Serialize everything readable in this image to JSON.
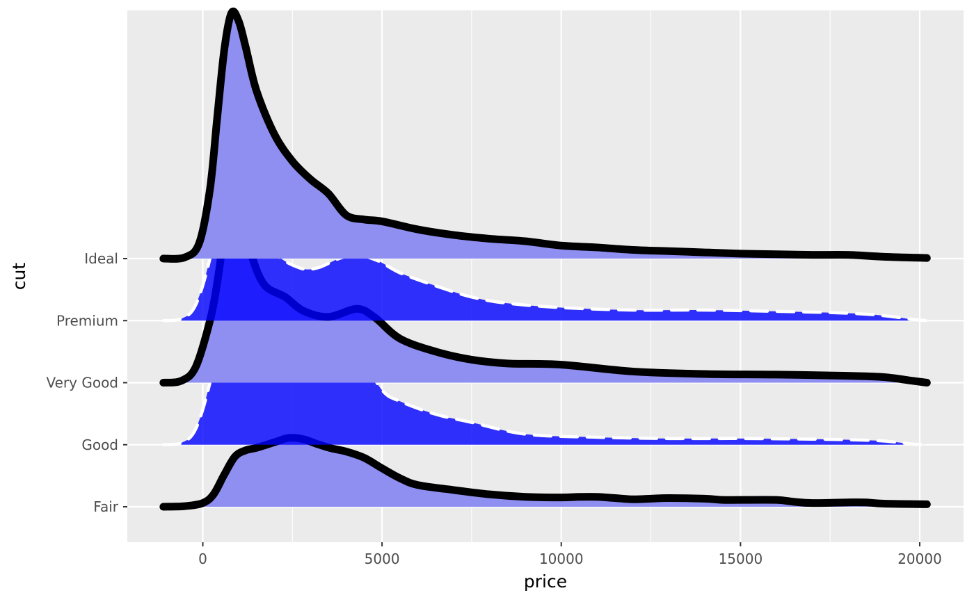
{
  "chart_data": {
    "type": "ridgeline",
    "xlabel": "price",
    "ylabel": "cut",
    "xlim": [
      -2100,
      21100
    ],
    "x_ticks": [
      0,
      5000,
      10000,
      15000,
      20000
    ],
    "x_tick_labels": [
      "0",
      "5000",
      "10000",
      "15000",
      "20000"
    ],
    "grid": true,
    "legend": "none",
    "categories": [
      "Fair",
      "Good",
      "Very Good",
      "Premium",
      "Ideal"
    ],
    "ridge_height_units": 1,
    "colors": {
      "panel_bg": "#ebebeb",
      "grid": "#ffffff",
      "fill_solid": "blue",
      "fill_light": "#8f8ff2",
      "line_solid": "#000000",
      "line_dashed": "#ffffff"
    },
    "series": [
      {
        "category": "Fair",
        "fill": "light",
        "line": "solid",
        "points": [
          [
            -1100,
            0
          ],
          [
            -500,
            0.01
          ],
          [
            0,
            0.06
          ],
          [
            300,
            0.2
          ],
          [
            600,
            0.52
          ],
          [
            900,
            0.81
          ],
          [
            1200,
            0.91
          ],
          [
            1500,
            0.95
          ],
          [
            2000,
            1.04
          ],
          [
            2400,
            1.11
          ],
          [
            2800,
            1.09
          ],
          [
            3200,
            1.01
          ],
          [
            3600,
            0.94
          ],
          [
            4000,
            0.89
          ],
          [
            4500,
            0.79
          ],
          [
            5000,
            0.62
          ],
          [
            5500,
            0.46
          ],
          [
            6000,
            0.35
          ],
          [
            7000,
            0.27
          ],
          [
            8000,
            0.2
          ],
          [
            9000,
            0.16
          ],
          [
            10000,
            0.15
          ],
          [
            10500,
            0.16
          ],
          [
            11000,
            0.16
          ],
          [
            11500,
            0.14
          ],
          [
            12000,
            0.12
          ],
          [
            12500,
            0.13
          ],
          [
            13000,
            0.14
          ],
          [
            14000,
            0.13
          ],
          [
            14500,
            0.11
          ],
          [
            15000,
            0.11
          ],
          [
            16000,
            0.11
          ],
          [
            16500,
            0.08
          ],
          [
            17000,
            0.06
          ],
          [
            18000,
            0.07
          ],
          [
            18500,
            0.07
          ],
          [
            19000,
            0.05
          ],
          [
            20200,
            0.04
          ]
        ]
      },
      {
        "category": "Good",
        "fill": "solid",
        "line": "dashed",
        "points": [
          [
            -1100,
            0
          ],
          [
            -600,
            0.03
          ],
          [
            -200,
            0.25
          ],
          [
            200,
            1.0
          ],
          [
            500,
            1.92
          ],
          [
            800,
            2.61
          ],
          [
            1000,
            2.5
          ],
          [
            1400,
            1.83
          ],
          [
            2000,
            1.38
          ],
          [
            2600,
            1.25
          ],
          [
            3200,
            1.21
          ],
          [
            3600,
            1.37
          ],
          [
            4000,
            1.53
          ],
          [
            4400,
            1.44
          ],
          [
            5000,
            0.88
          ],
          [
            5500,
            0.7
          ],
          [
            6500,
            0.49
          ],
          [
            7500,
            0.36
          ],
          [
            9000,
            0.17
          ],
          [
            11000,
            0.12
          ],
          [
            13000,
            0.1
          ],
          [
            15000,
            0.1
          ],
          [
            17000,
            0.09
          ],
          [
            18000,
            0.08
          ],
          [
            19000,
            0.06
          ],
          [
            19800,
            0.01
          ],
          [
            20200,
            0
          ]
        ]
      },
      {
        "category": "Very Good",
        "fill": "light",
        "line": "solid",
        "points": [
          [
            -1100,
            0
          ],
          [
            -600,
            0.03
          ],
          [
            -200,
            0.25
          ],
          [
            200,
            1.0
          ],
          [
            400,
            1.6
          ],
          [
            600,
            2.4
          ],
          [
            800,
            2.97
          ],
          [
            1000,
            2.83
          ],
          [
            1300,
            2.16
          ],
          [
            1700,
            1.59
          ],
          [
            2300,
            1.38
          ],
          [
            2800,
            1.16
          ],
          [
            3500,
            1.06
          ],
          [
            4300,
            1.19
          ],
          [
            4800,
            1.05
          ],
          [
            5500,
            0.71
          ],
          [
            6500,
            0.5
          ],
          [
            7500,
            0.37
          ],
          [
            8500,
            0.31
          ],
          [
            10000,
            0.29
          ],
          [
            12000,
            0.18
          ],
          [
            14000,
            0.14
          ],
          [
            16000,
            0.13
          ],
          [
            18000,
            0.11
          ],
          [
            19000,
            0.09
          ],
          [
            19800,
            0.03
          ],
          [
            20200,
            0
          ]
        ]
      },
      {
        "category": "Premium",
        "fill": "solid",
        "line": "dashed",
        "points": [
          [
            -1100,
            0
          ],
          [
            -600,
            0.03
          ],
          [
            -200,
            0.25
          ],
          [
            200,
            1.0
          ],
          [
            500,
            1.92
          ],
          [
            800,
            2.63
          ],
          [
            1000,
            2.47
          ],
          [
            1400,
            1.7
          ],
          [
            2000,
            1.1
          ],
          [
            2700,
            0.85
          ],
          [
            3200,
            0.85
          ],
          [
            3800,
            1.0
          ],
          [
            4300,
            1.06
          ],
          [
            4900,
            0.96
          ],
          [
            5500,
            0.77
          ],
          [
            6500,
            0.56
          ],
          [
            7500,
            0.38
          ],
          [
            8500,
            0.28
          ],
          [
            10000,
            0.21
          ],
          [
            12000,
            0.17
          ],
          [
            14000,
            0.17
          ],
          [
            16000,
            0.15
          ],
          [
            18000,
            0.12
          ],
          [
            19000,
            0.08
          ],
          [
            19800,
            0.02
          ],
          [
            20200,
            0
          ]
        ]
      },
      {
        "category": "Ideal",
        "fill": "light",
        "line": "solid",
        "points": [
          [
            -1100,
            0
          ],
          [
            -500,
            0.02
          ],
          [
            -100,
            0.25
          ],
          [
            200,
            1.12
          ],
          [
            400,
            2.26
          ],
          [
            600,
            3.37
          ],
          [
            800,
            3.96
          ],
          [
            1000,
            3.83
          ],
          [
            1200,
            3.4
          ],
          [
            1500,
            2.7
          ],
          [
            2000,
            2.0
          ],
          [
            2500,
            1.57
          ],
          [
            3000,
            1.28
          ],
          [
            3500,
            1.05
          ],
          [
            4000,
            0.7
          ],
          [
            4500,
            0.63
          ],
          [
            5000,
            0.6
          ],
          [
            6000,
            0.47
          ],
          [
            7000,
            0.38
          ],
          [
            8000,
            0.32
          ],
          [
            9000,
            0.28
          ],
          [
            10000,
            0.21
          ],
          [
            11000,
            0.18
          ],
          [
            12000,
            0.14
          ],
          [
            13000,
            0.12
          ],
          [
            14000,
            0.1
          ],
          [
            15000,
            0.08
          ],
          [
            16000,
            0.07
          ],
          [
            17000,
            0.06
          ],
          [
            18000,
            0.06
          ],
          [
            19000,
            0.03
          ],
          [
            20200,
            0.01
          ]
        ]
      }
    ]
  }
}
